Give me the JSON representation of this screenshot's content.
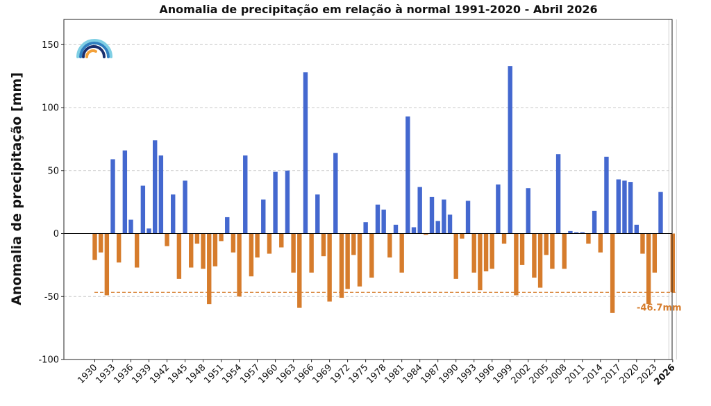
{
  "chart_data": {
    "type": "bar",
    "title": "Anomalia de precipitação em relação à normal 1991-2020 - Abril 2026",
    "ylabel": "Anomalia de precipitação [mm]",
    "xlabel": "",
    "ylim": [
      -100,
      170
    ],
    "yticks": [
      -100,
      -50,
      0,
      50,
      100,
      150
    ],
    "grid": true,
    "legend": "none",
    "x_tick_labels": [
      "1930",
      "1933",
      "1936",
      "1939",
      "1942",
      "1945",
      "1948",
      "1951",
      "1954",
      "1957",
      "1960",
      "1963",
      "1966",
      "1969",
      "1972",
      "1975",
      "1978",
      "1981",
      "1984",
      "1987",
      "1990",
      "1993",
      "1996",
      "1999",
      "2002",
      "2005",
      "2008",
      "2011",
      "2014",
      "2017",
      "2020",
      "2023",
      "2026"
    ],
    "highlight_tick": "2026",
    "years": [
      1930,
      1931,
      1932,
      1933,
      1934,
      1935,
      1936,
      1937,
      1938,
      1939,
      1940,
      1941,
      1942,
      1943,
      1944,
      1945,
      1946,
      1947,
      1948,
      1949,
      1950,
      1951,
      1952,
      1953,
      1954,
      1955,
      1956,
      1957,
      1958,
      1959,
      1960,
      1961,
      1962,
      1963,
      1964,
      1965,
      1966,
      1967,
      1968,
      1969,
      1970,
      1971,
      1972,
      1973,
      1974,
      1975,
      1976,
      1977,
      1978,
      1979,
      1980,
      1981,
      1982,
      1983,
      1984,
      1985,
      1986,
      1987,
      1988,
      1989,
      1990,
      1991,
      1992,
      1993,
      1994,
      1995,
      1996,
      1997,
      1998,
      1999,
      2000,
      2001,
      2002,
      2003,
      2004,
      2005,
      2006,
      2007,
      2008,
      2009,
      2010,
      2011,
      2012,
      2013,
      2014,
      2015,
      2016,
      2017,
      2018,
      2019,
      2020,
      2021,
      2022,
      2023,
      2024,
      2025,
      2026
    ],
    "values": [
      -21,
      -15,
      -49,
      59,
      -23,
      66,
      11,
      -27,
      38,
      4,
      74,
      62,
      -10,
      31,
      -36,
      42,
      -27,
      -8,
      -28,
      -56,
      -26,
      -6,
      13,
      -15,
      -50,
      62,
      -34,
      -19,
      27,
      -16,
      49,
      -11,
      50,
      -31,
      -59,
      128,
      -31,
      31,
      -18,
      -54,
      64,
      -51,
      -44,
      -17,
      -42,
      9,
      -35,
      23,
      19,
      -19,
      7,
      -31,
      93,
      5,
      37,
      -1,
      29,
      10,
      27,
      15,
      -36,
      -4,
      26,
      -31,
      -45,
      -30,
      -28,
      39,
      -8,
      133,
      -49,
      -25,
      36,
      -35,
      -43,
      -17,
      -28,
      63,
      -28,
      2,
      1,
      1,
      -8,
      18,
      -15,
      61,
      -63,
      43,
      42,
      41,
      7,
      -16,
      -56,
      -31,
      33,
      0,
      -46.7
    ],
    "colors": {
      "positive": "#4468cf",
      "negative": "#d67c2c",
      "reference": "#d67c2c"
    },
    "reference_line": {
      "value": -46.7,
      "label": "-46.7mm"
    }
  }
}
